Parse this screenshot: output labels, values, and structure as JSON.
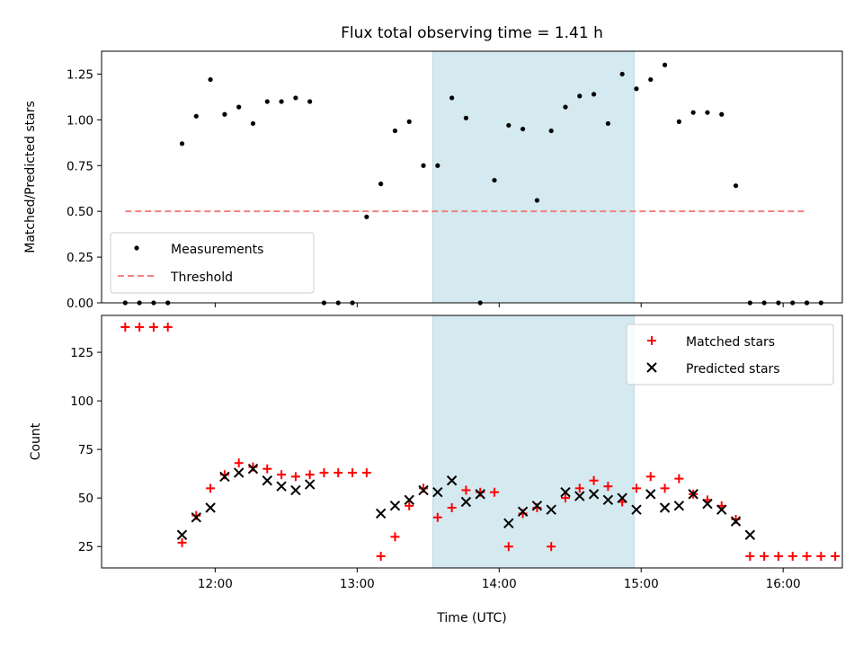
{
  "title": "Flux total observing time = 1.41 h",
  "chart_data": [
    {
      "type": "scatter",
      "name": "ratio-panel",
      "ylabel": "Matched/Predicted stars",
      "xlim": [
        "11:12",
        "16:25"
      ],
      "ylim": [
        0,
        1.375
      ],
      "y_ticks": [
        0.0,
        0.25,
        0.5,
        0.75,
        1.0,
        1.25
      ],
      "y_tick_labels": [
        "0.00",
        "0.25",
        "0.50",
        "0.75",
        "1.00",
        "1.25"
      ],
      "shaded_region": {
        "from": "13:32",
        "to": "14:57",
        "color": "#d4eaf0"
      },
      "legend_position": "lower-left",
      "series": [
        {
          "name": "Measurements",
          "color": "#000000",
          "marker": "dot",
          "points": [
            [
              "11:22",
              0
            ],
            [
              "11:28",
              0
            ],
            [
              "11:34",
              0
            ],
            [
              "11:40",
              0
            ],
            [
              "11:46",
              0.87
            ],
            [
              "11:52",
              1.02
            ],
            [
              "11:58",
              1.22
            ],
            [
              "12:04",
              1.03
            ],
            [
              "12:10",
              1.07
            ],
            [
              "12:16",
              0.98
            ],
            [
              "12:22",
              1.1
            ],
            [
              "12:28",
              1.1
            ],
            [
              "12:34",
              1.12
            ],
            [
              "12:40",
              1.1
            ],
            [
              "12:46",
              0
            ],
            [
              "12:52",
              0
            ],
            [
              "12:58",
              0
            ],
            [
              "13:04",
              0.47
            ],
            [
              "13:10",
              0.65
            ],
            [
              "13:16",
              0.94
            ],
            [
              "13:22",
              0.99
            ],
            [
              "13:28",
              0.75
            ],
            [
              "13:34",
              0.75
            ],
            [
              "13:40",
              1.12
            ],
            [
              "13:46",
              1.01
            ],
            [
              "13:52",
              0
            ],
            [
              "13:58",
              0.67
            ],
            [
              "14:04",
              0.97
            ],
            [
              "14:10",
              0.95
            ],
            [
              "14:16",
              0.56
            ],
            [
              "14:22",
              0.94
            ],
            [
              "14:28",
              1.07
            ],
            [
              "14:34",
              1.13
            ],
            [
              "14:40",
              1.14
            ],
            [
              "14:46",
              0.98
            ],
            [
              "14:52",
              1.25
            ],
            [
              "14:58",
              1.17
            ],
            [
              "15:04",
              1.22
            ],
            [
              "15:10",
              1.3
            ],
            [
              "15:16",
              0.99
            ],
            [
              "15:22",
              1.04
            ],
            [
              "15:28",
              1.04
            ],
            [
              "15:34",
              1.03
            ],
            [
              "15:40",
              0.64
            ],
            [
              "15:46",
              0
            ],
            [
              "15:52",
              0
            ],
            [
              "15:58",
              0
            ],
            [
              "16:04",
              0
            ],
            [
              "16:10",
              0
            ],
            [
              "16:16",
              0
            ],
            [
              "16:10",
              0
            ]
          ]
        },
        {
          "name": "Threshold",
          "color": "#f08080",
          "line_style": "dashed",
          "x": [
            "11:22",
            "16:10"
          ],
          "y": [
            0.5,
            0.5
          ]
        }
      ]
    },
    {
      "type": "scatter",
      "name": "count-panel",
      "xlabel": "Time (UTC)",
      "ylabel": "Count",
      "xlim": [
        "11:12",
        "16:25"
      ],
      "ylim": [
        14,
        144
      ],
      "y_ticks": [
        25,
        50,
        75,
        100,
        125
      ],
      "y_tick_labels": [
        "25",
        "50",
        "75",
        "100",
        "125"
      ],
      "x_ticks": [
        "12:00",
        "13:00",
        "14:00",
        "15:00",
        "16:00"
      ],
      "x_tick_labels": [
        "12:00",
        "13:00",
        "14:00",
        "15:00",
        "16:00"
      ],
      "shaded_region": {
        "from": "13:32",
        "to": "14:57",
        "color": "#d4eaf0"
      },
      "legend_position": "upper-right",
      "series": [
        {
          "name": "Matched stars",
          "color": "#ff0000",
          "marker": "plus",
          "points": [
            [
              "11:22",
              138
            ],
            [
              "11:28",
              138
            ],
            [
              "11:34",
              138
            ],
            [
              "11:40",
              138
            ],
            [
              "11:46",
              27
            ],
            [
              "11:52",
              41
            ],
            [
              "11:58",
              55
            ],
            [
              "12:04",
              62
            ],
            [
              "12:10",
              68
            ],
            [
              "12:16",
              66
            ],
            [
              "12:22",
              65
            ],
            [
              "12:28",
              62
            ],
            [
              "12:34",
              61
            ],
            [
              "12:40",
              62
            ],
            [
              "12:46",
              63
            ],
            [
              "12:52",
              63
            ],
            [
              "12:58",
              63
            ],
            [
              "13:04",
              63
            ],
            [
              "13:10",
              20
            ],
            [
              "13:16",
              30
            ],
            [
              "13:22",
              46
            ],
            [
              "13:28",
              55
            ],
            [
              "13:34",
              40
            ],
            [
              "13:40",
              45
            ],
            [
              "13:46",
              54
            ],
            [
              "13:52",
              53
            ],
            [
              "13:58",
              53
            ],
            [
              "14:04",
              25
            ],
            [
              "14:10",
              42
            ],
            [
              "14:16",
              45
            ],
            [
              "14:22",
              25
            ],
            [
              "14:28",
              50
            ],
            [
              "14:34",
              55
            ],
            [
              "14:40",
              59
            ],
            [
              "14:46",
              56
            ],
            [
              "14:52",
              48
            ],
            [
              "14:58",
              55
            ],
            [
              "15:04",
              61
            ],
            [
              "15:10",
              55
            ],
            [
              "15:16",
              60
            ],
            [
              "15:22",
              52
            ],
            [
              "15:28",
              49
            ],
            [
              "15:34",
              46
            ],
            [
              "15:40",
              39
            ],
            [
              "15:46",
              20
            ],
            [
              "15:52",
              20
            ],
            [
              "15:58",
              20
            ],
            [
              "16:04",
              20
            ],
            [
              "16:10",
              20
            ],
            [
              "16:16",
              20
            ],
            [
              "16:22",
              20
            ],
            [
              "16:10",
              20
            ]
          ]
        },
        {
          "name": "Predicted stars",
          "color": "#000000",
          "marker": "x",
          "points": [
            [
              "11:46",
              31
            ],
            [
              "11:52",
              40
            ],
            [
              "11:58",
              45
            ],
            [
              "12:04",
              61
            ],
            [
              "12:10",
              63
            ],
            [
              "12:16",
              65
            ],
            [
              "12:22",
              59
            ],
            [
              "12:28",
              56
            ],
            [
              "12:34",
              54
            ],
            [
              "12:40",
              57
            ],
            [
              "13:10",
              42
            ],
            [
              "13:16",
              46
            ],
            [
              "13:22",
              49
            ],
            [
              "13:28",
              54
            ],
            [
              "13:34",
              53
            ],
            [
              "13:40",
              59
            ],
            [
              "13:46",
              48
            ],
            [
              "13:52",
              52
            ],
            [
              "14:04",
              37
            ],
            [
              "14:10",
              43
            ],
            [
              "14:16",
              46
            ],
            [
              "14:22",
              44
            ],
            [
              "14:28",
              53
            ],
            [
              "14:34",
              51
            ],
            [
              "14:40",
              52
            ],
            [
              "14:46",
              49
            ],
            [
              "14:52",
              50
            ],
            [
              "14:58",
              44
            ],
            [
              "15:04",
              52
            ],
            [
              "15:10",
              45
            ],
            [
              "15:16",
              46
            ],
            [
              "15:22",
              52
            ],
            [
              "15:28",
              47
            ],
            [
              "15:34",
              44
            ],
            [
              "15:40",
              38
            ],
            [
              "15:46",
              31
            ]
          ]
        }
      ]
    }
  ]
}
